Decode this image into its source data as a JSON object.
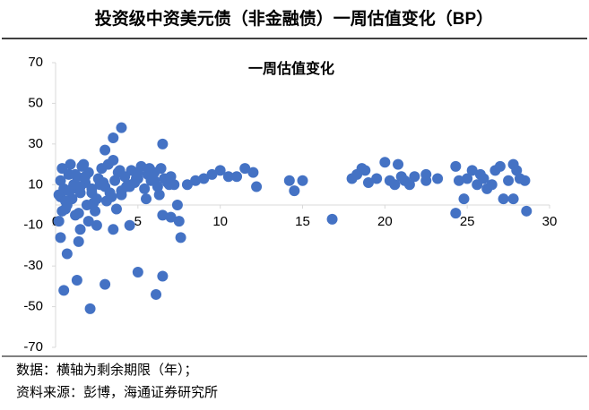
{
  "chart_data": {
    "type": "scatter",
    "title": "投资级中资美元债（非金融债）一周估值变化（BP）",
    "chart_title": "一周估值变化",
    "notes": [
      "数据：横轴为剩余期限（年）；",
      "资料来源：彭博，海通证券研究所"
    ],
    "color": "#4472c4",
    "xlim": [
      0,
      30
    ],
    "xticks": [
      0,
      5,
      10,
      15,
      20,
      25,
      30
    ],
    "ylim": [
      -70,
      70
    ],
    "yticks": [
      -70,
      -50,
      -30,
      -10,
      10,
      30,
      50,
      70
    ],
    "x": [
      0.3,
      0.5,
      0.7,
      1.3,
      1.4,
      2.1,
      3,
      1.5,
      3.5,
      4,
      3,
      5,
      6.1,
      6.5,
      6.5,
      7.6,
      7.5,
      6.5,
      7,
      4.5,
      3.5,
      2.5,
      2,
      0.2,
      0.3,
      0.4,
      0.5,
      0.6,
      0.8,
      0.9,
      1,
      1.1,
      1.2,
      1.3,
      1.5,
      1.6,
      1.8,
      1.9,
      2,
      2.2,
      2.4,
      2.6,
      2.8,
      3,
      3.2,
      3.4,
      3.6,
      3.8,
      4,
      4.2,
      4.4,
      4.6,
      4.8,
      5,
      5.2,
      5.4,
      5.6,
      5.8,
      6,
      6.2,
      6.4,
      6.6,
      6.8,
      7,
      7.2,
      7.4,
      0.3,
      0.6,
      1,
      1.4,
      1.8,
      2.2,
      2.7,
      3.1,
      3.5,
      4,
      4.5,
      5,
      5.5,
      6,
      0.4,
      0.8,
      1.2,
      1.7,
      2.3,
      2.9,
      3.3,
      3.9,
      4.3,
      4.9,
      5.7,
      6.3,
      6.9,
      0.2,
      0.7,
      1.5,
      2.5,
      3.7,
      8,
      8.5,
      9,
      9.5,
      10,
      10.5,
      11.5,
      12,
      12.2,
      11,
      14.2,
      14.5,
      15,
      16.8,
      18,
      18.3,
      18.6,
      18.8,
      19,
      19.5,
      20,
      20.3,
      20.6,
      20.8,
      21,
      21.2,
      21.5,
      21.8,
      22.5,
      22.5,
      23.2,
      24.3,
      24.3,
      24.5,
      24.8,
      25,
      25.3,
      25.6,
      25.8,
      26,
      26.2,
      26.5,
      26.7,
      27,
      27.2,
      27.5,
      27.8,
      27.8,
      28,
      28.2,
      28.5,
      28.6
    ],
    "y": [
      -16,
      -42,
      -24,
      -37,
      -18,
      -51,
      -39,
      -12,
      33,
      38,
      27,
      -33,
      -44,
      -35,
      30,
      -16,
      -8,
      -5,
      -6,
      -10,
      -12,
      -10,
      -8,
      5,
      12,
      18,
      8,
      -2,
      15,
      20,
      3,
      10,
      -5,
      14,
      6,
      19,
      11,
      0,
      16,
      8,
      -3,
      13,
      18,
      9,
      20,
      4,
      12,
      16,
      7,
      14,
      10,
      17,
      11,
      13,
      19,
      8,
      15,
      12,
      16,
      9,
      18,
      13,
      11,
      14,
      10,
      0,
      4,
      2,
      8,
      -4,
      14,
      6,
      10,
      2,
      22,
      5,
      9,
      16,
      3,
      12,
      -3,
      7,
      15,
      20,
      1,
      11,
      6,
      17,
      9,
      13,
      18,
      5,
      10,
      -8,
      0,
      9,
      3,
      -2,
      10,
      12,
      13,
      15,
      17,
      14,
      18,
      16,
      9,
      14,
      12,
      7,
      12,
      -7,
      13,
      15,
      18,
      17,
      11,
      13,
      21,
      12,
      10,
      20,
      14,
      12,
      10,
      14,
      15,
      12,
      13,
      19,
      -4,
      12,
      3,
      13,
      17,
      10,
      15,
      13,
      8,
      10,
      17,
      19,
      3,
      12,
      20,
      3,
      17,
      13,
      12,
      -3
    ]
  }
}
